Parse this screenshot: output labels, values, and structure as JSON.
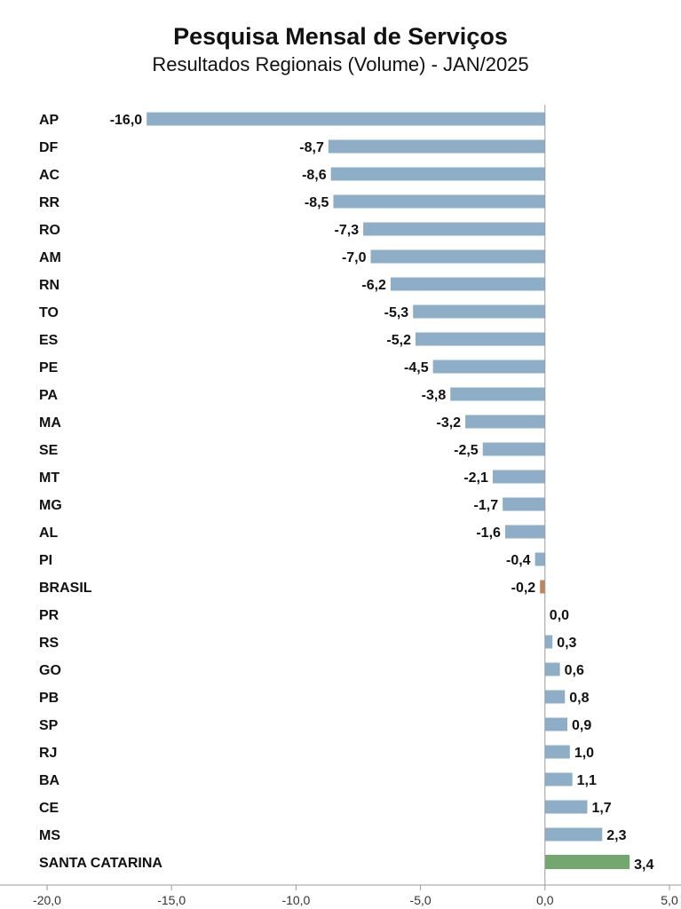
{
  "chart_data": {
    "type": "bar",
    "orientation": "horizontal",
    "title": "Pesquisa Mensal de Serviços",
    "subtitle": "Resultados Regionais (Volume) - JAN/2025",
    "xlim": [
      -20,
      5
    ],
    "xticks": [
      "-20,0",
      "-15,0",
      "-10,0",
      "-5,0",
      "0,0",
      "5,0"
    ],
    "xtick_values": [
      -20,
      -15,
      -10,
      -5,
      0,
      5
    ],
    "grid": false,
    "colors": {
      "default": "#8eadc6",
      "brasil": "#c0865b",
      "santa_catarina": "#72a86e"
    },
    "categories": [
      "AP",
      "DF",
      "AC",
      "RR",
      "RO",
      "AM",
      "RN",
      "TO",
      "ES",
      "PE",
      "PA",
      "MA",
      "SE",
      "MT",
      "MG",
      "AL",
      "PI",
      "BRASIL",
      "PR",
      "RS",
      "GO",
      "PB",
      "SP",
      "RJ",
      "BA",
      "CE",
      "MS",
      "SANTA CATARINA"
    ],
    "values": [
      -16.0,
      -8.7,
      -8.6,
      -8.5,
      -7.3,
      -7.0,
      -6.2,
      -5.3,
      -5.2,
      -4.5,
      -3.8,
      -3.2,
      -2.5,
      -2.1,
      -1.7,
      -1.6,
      -0.4,
      -0.2,
      0.0,
      0.3,
      0.6,
      0.8,
      0.9,
      1.0,
      1.1,
      1.7,
      2.3,
      3.4
    ],
    "value_labels": [
      "-16,0",
      "-8,7",
      "-8,6",
      "-8,5",
      "-7,3",
      "-7,0",
      "-6,2",
      "-5,3",
      "-5,2",
      "-4,5",
      "-3,8",
      "-3,2",
      "-2,5",
      "-2,1",
      "-1,7",
      "-1,6",
      "-0,4",
      "-0,2",
      "0,0",
      "0,3",
      "0,6",
      "0,8",
      "0,9",
      "1,0",
      "1,1",
      "1,7",
      "2,3",
      "3,4"
    ],
    "highlight": {
      "BRASIL": "brasil",
      "SANTA CATARINA": "santa_catarina"
    }
  }
}
